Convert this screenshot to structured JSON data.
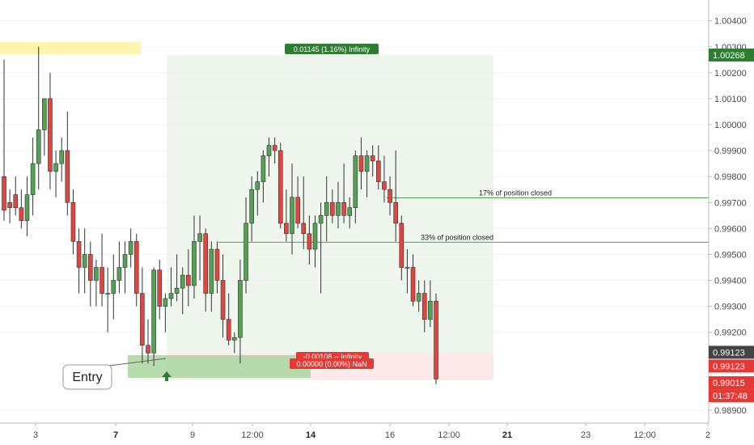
{
  "chart_data": {
    "type": "candlestick",
    "y_axis": {
      "ticks": [
        "1.00400",
        "1.00300",
        "1.00268",
        "1.00200",
        "1.00100",
        "1.00000",
        "0.99900",
        "0.99800",
        "0.99700",
        "0.99600",
        "0.99500",
        "0.99400",
        "0.99300",
        "0.99200",
        "0.99123",
        "0.99015",
        "0.98900"
      ],
      "grid_ticks": [
        1.004,
        1.003,
        1.002,
        1.001,
        1.0,
        0.999,
        0.998,
        0.997,
        0.996,
        0.995,
        0.994,
        0.993,
        0.992,
        0.989
      ],
      "range": [
        0.9885,
        1.0048
      ]
    },
    "x_axis": {
      "ticks": [
        "3",
        "7",
        "9",
        "12:00",
        "14",
        "12:00",
        "16",
        "12:00",
        "21",
        "23",
        "12:00",
        "2"
      ],
      "bold_ticks": [
        "7",
        "14",
        "21"
      ]
    },
    "candles": [
      [
        0.998,
        0.9963,
        1.0025,
        0.9967
      ],
      [
        0.997,
        0.9962,
        0.9975,
        0.9968
      ],
      [
        0.9973,
        0.9965,
        0.998,
        0.9968
      ],
      [
        0.9968,
        0.996,
        0.9975,
        0.9963
      ],
      [
        0.9963,
        0.9957,
        0.998,
        0.9973
      ],
      [
        0.9973,
        0.9965,
        0.9995,
        0.9985
      ],
      [
        0.9985,
        0.9975,
        1.003,
        0.9998
      ],
      [
        0.9998,
        0.9988,
        1.001,
        1.001
      ],
      [
        1.001,
        0.9975,
        1.002,
        0.9982
      ],
      [
        0.9982,
        0.9972,
        0.999,
        0.9985
      ],
      [
        0.9985,
        0.9978,
        0.9995,
        0.999
      ],
      [
        0.999,
        0.9965,
        1.0005,
        0.997
      ],
      [
        0.997,
        0.995,
        0.9975,
        0.9955
      ],
      [
        0.9955,
        0.9935,
        0.996,
        0.9945
      ],
      [
        0.9945,
        0.9935,
        0.996,
        0.995
      ],
      [
        0.995,
        0.993,
        0.9955,
        0.994
      ],
      [
        0.994,
        0.993,
        0.9948,
        0.9945
      ],
      [
        0.9945,
        0.993,
        0.9958,
        0.9935
      ],
      [
        0.9935,
        0.992,
        0.9945,
        0.9935
      ],
      [
        0.9935,
        0.9925,
        0.995,
        0.994
      ],
      [
        0.994,
        0.9935,
        0.9955,
        0.9945
      ],
      [
        0.9945,
        0.9935,
        0.9955,
        0.995
      ],
      [
        0.995,
        0.9945,
        0.996,
        0.9955
      ],
      [
        0.9955,
        0.993,
        0.9958,
        0.9935
      ],
      [
        0.9935,
        0.9908,
        0.9945,
        0.9915
      ],
      [
        0.9915,
        0.9908,
        0.9925,
        0.9912
      ],
      [
        0.9912,
        0.9907,
        0.9945,
        0.9944
      ],
      [
        0.9944,
        0.9925,
        0.9948,
        0.993
      ],
      [
        0.993,
        0.992,
        0.9935,
        0.9933
      ],
      [
        0.9933,
        0.993,
        0.9945,
        0.9935
      ],
      [
        0.9935,
        0.9932,
        0.995,
        0.9937
      ],
      [
        0.9937,
        0.9927,
        0.9945,
        0.9942
      ],
      [
        0.9942,
        0.993,
        0.9952,
        0.9938
      ],
      [
        0.9938,
        0.9933,
        0.9965,
        0.9955
      ],
      [
        0.9955,
        0.994,
        0.9965,
        0.9958
      ],
      [
        0.9958,
        0.9928,
        0.996,
        0.9935
      ],
      [
        0.9935,
        0.9928,
        0.9955,
        0.9952
      ],
      [
        0.9952,
        0.9935,
        0.9955,
        0.994
      ],
      [
        0.994,
        0.9918,
        0.995,
        0.9925
      ],
      [
        0.9925,
        0.9915,
        0.9935,
        0.9917
      ],
      [
        0.9917,
        0.9912,
        0.992,
        0.9918
      ],
      [
        0.9918,
        0.9908,
        0.9948,
        0.994
      ],
      [
        0.994,
        0.9935,
        0.9972,
        0.9962
      ],
      [
        0.9962,
        0.9955,
        0.998,
        0.9975
      ],
      [
        0.9975,
        0.9965,
        0.9982,
        0.9978
      ],
      [
        0.9978,
        0.997,
        0.999,
        0.9988
      ],
      [
        0.9988,
        0.998,
        0.9995,
        0.9992
      ],
      [
        0.9992,
        0.9985,
        0.9995,
        0.999
      ],
      [
        0.999,
        0.996,
        0.9993,
        0.9962
      ],
      [
        0.9962,
        0.9955,
        0.9975,
        0.9958
      ],
      [
        0.9958,
        0.995,
        0.9985,
        0.9972
      ],
      [
        0.9972,
        0.996,
        0.998,
        0.9962
      ],
      [
        0.9962,
        0.9952,
        0.998,
        0.9958
      ],
      [
        0.9958,
        0.9946,
        0.9965,
        0.9952
      ],
      [
        0.9952,
        0.9945,
        0.9965,
        0.9962
      ],
      [
        0.9962,
        0.9935,
        0.997,
        0.9965
      ],
      [
        0.9965,
        0.9955,
        0.998,
        0.997
      ],
      [
        0.997,
        0.9962,
        0.9975,
        0.9965
      ],
      [
        0.9965,
        0.996,
        0.9978,
        0.997
      ],
      [
        0.997,
        0.9962,
        0.9985,
        0.9965
      ],
      [
        0.9965,
        0.996,
        0.9972,
        0.9968
      ],
      [
        0.9968,
        0.9962,
        0.999,
        0.9988
      ],
      [
        0.9988,
        0.9975,
        0.9995,
        0.9982
      ],
      [
        0.9982,
        0.9972,
        0.999,
        0.9988
      ],
      [
        0.9988,
        0.998,
        0.9992,
        0.9986
      ],
      [
        0.9986,
        0.9975,
        0.9992,
        0.9978
      ],
      [
        0.9978,
        0.997,
        0.9988,
        0.9975
      ],
      [
        0.9975,
        0.9965,
        0.998,
        0.997
      ],
      [
        0.997,
        0.9955,
        0.999,
        0.9962
      ],
      [
        0.9962,
        0.994,
        0.9965,
        0.9945
      ],
      [
        0.9945,
        0.9935,
        0.9952,
        0.9945
      ],
      [
        0.9945,
        0.993,
        0.995,
        0.9932
      ],
      [
        0.9932,
        0.9928,
        0.994,
        0.9935
      ],
      [
        0.9935,
        0.992,
        0.994,
        0.9925
      ],
      [
        0.9925,
        0.9922,
        0.994,
        0.9932
      ],
      [
        0.9932,
        0.99,
        0.9935,
        0.9902
      ]
    ],
    "colors": {
      "up": "#53a253",
      "down": "#e0463e"
    },
    "annotations": {
      "long_badge": "0.01145 (1.16%) Infinity",
      "stop_badge": "-0.00108 -- Infinity",
      "stop_badge2": "0.00000 (0.00%) NaN",
      "line1_label": "17% of position closed",
      "line2_label": "33% of position closed",
      "entry_label": "Entry"
    },
    "price_tags": {
      "target": "1.00268",
      "last1": "0.99123",
      "last2": "0.99123",
      "low": "0.99015",
      "countdown": "01:37:48"
    }
  }
}
